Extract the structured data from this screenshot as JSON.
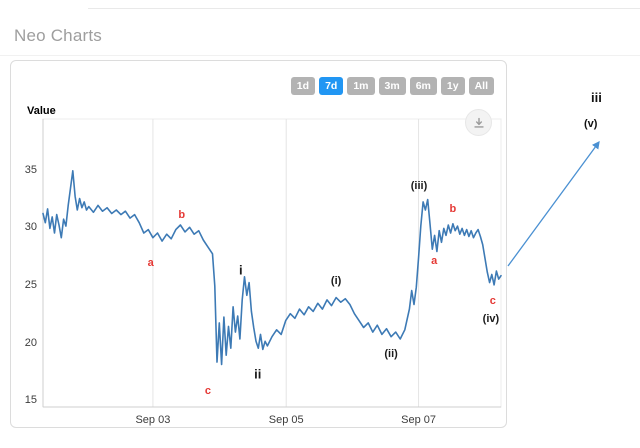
{
  "page": {
    "title": "Neo Charts"
  },
  "colors": {
    "accent": "#2196f3",
    "btn-gray": "#b3b3b3",
    "line": "#3d7ab5",
    "red": "#e53935",
    "arrow-blue": "#4a90d2",
    "title-gray": "#9e9e9e"
  },
  "toolbar": {
    "ranges": [
      {
        "label": "1d",
        "active": false
      },
      {
        "label": "7d",
        "active": true
      },
      {
        "label": "1m",
        "active": false
      },
      {
        "label": "3m",
        "active": false
      },
      {
        "label": "6m",
        "active": false
      },
      {
        "label": "1y",
        "active": false
      },
      {
        "label": "All",
        "active": false
      }
    ],
    "download_icon": "download-icon"
  },
  "chart_data": {
    "type": "line",
    "title": "Neo Charts",
    "ylabel": "Value",
    "xlabel": "",
    "y_ticks": [
      15,
      20,
      25,
      30,
      35
    ],
    "ylim": [
      14.5,
      39.5
    ],
    "grid": "vertical-gridlines-at-date-ticks",
    "legend": "none",
    "x_axis": {
      "labels": [
        "Sep 03",
        "Sep 05",
        "Sep 07"
      ],
      "positions_pct": [
        24,
        53.1,
        82
      ],
      "window": "7d"
    },
    "series": [
      {
        "name": "Value",
        "color": "#3d7ab5",
        "points": [
          [
            0,
            31.3
          ],
          [
            0.5,
            30.5
          ],
          [
            1,
            31.7
          ],
          [
            1.5,
            30
          ],
          [
            2,
            31
          ],
          [
            2.5,
            29.6
          ],
          [
            3,
            31.2
          ],
          [
            3.5,
            30.3
          ],
          [
            4,
            29.2
          ],
          [
            4.5,
            30.8
          ],
          [
            5,
            30.2
          ],
          [
            5.5,
            32
          ],
          [
            6,
            33.5
          ],
          [
            6.5,
            35
          ],
          [
            7,
            32.8
          ],
          [
            7.5,
            31.6
          ],
          [
            8,
            32.6
          ],
          [
            8.5,
            31.8
          ],
          [
            9,
            32.3
          ],
          [
            9.5,
            31.6
          ],
          [
            10,
            31.9
          ],
          [
            11,
            31.4
          ],
          [
            12,
            32
          ],
          [
            13,
            31.5
          ],
          [
            14,
            31.8
          ],
          [
            15,
            31.3
          ],
          [
            16,
            31.6
          ],
          [
            17,
            31.2
          ],
          [
            18,
            31.5
          ],
          [
            19,
            30.9
          ],
          [
            20,
            31.2
          ],
          [
            21,
            30.5
          ],
          [
            22,
            29.6
          ],
          [
            23,
            29.9
          ],
          [
            24,
            29.2
          ],
          [
            25,
            29.6
          ],
          [
            26,
            28.9
          ],
          [
            27,
            29.5
          ],
          [
            28,
            29.1
          ],
          [
            29,
            29.9
          ],
          [
            30,
            30.3
          ],
          [
            31,
            29.7
          ],
          [
            32,
            30.1
          ],
          [
            33,
            29.5
          ],
          [
            34,
            29.8
          ],
          [
            35,
            29
          ],
          [
            36,
            28.4
          ],
          [
            37,
            27.8
          ],
          [
            37.5,
            25
          ],
          [
            38,
            18.4
          ],
          [
            38.5,
            21.8
          ],
          [
            39,
            18.2
          ],
          [
            39.5,
            22.3
          ],
          [
            40,
            19
          ],
          [
            40.5,
            21.5
          ],
          [
            41,
            19.6
          ],
          [
            41.5,
            23.2
          ],
          [
            42,
            21
          ],
          [
            42.5,
            22.4
          ],
          [
            43,
            20.4
          ],
          [
            43.5,
            23.8
          ],
          [
            44,
            25.8
          ],
          [
            44.5,
            24.2
          ],
          [
            45,
            25.3
          ],
          [
            45.5,
            22.8
          ],
          [
            46,
            21.4
          ],
          [
            46.5,
            20.2
          ],
          [
            47,
            19.6
          ],
          [
            47.5,
            20.8
          ],
          [
            48,
            19.5
          ],
          [
            48.5,
            20.2
          ],
          [
            49,
            19.8
          ],
          [
            50,
            20.6
          ],
          [
            51,
            21.2
          ],
          [
            52,
            20.8
          ],
          [
            53,
            22
          ],
          [
            54,
            22.6
          ],
          [
            55,
            22.2
          ],
          [
            56,
            23
          ],
          [
            57,
            22.5
          ],
          [
            58,
            23.2
          ],
          [
            59,
            22.8
          ],
          [
            60,
            23.5
          ],
          [
            61,
            23
          ],
          [
            62,
            23.8
          ],
          [
            63,
            23.3
          ],
          [
            64,
            24
          ],
          [
            65,
            23.6
          ],
          [
            66,
            23.9
          ],
          [
            67,
            23.4
          ],
          [
            68,
            22.6
          ],
          [
            69,
            22
          ],
          [
            70,
            21.4
          ],
          [
            71,
            21.8
          ],
          [
            72,
            21
          ],
          [
            73,
            21.6
          ],
          [
            74,
            20.8
          ],
          [
            75,
            21.3
          ],
          [
            76,
            20.6
          ],
          [
            77,
            21
          ],
          [
            78,
            20.4
          ],
          [
            79,
            21.2
          ],
          [
            80,
            23
          ],
          [
            80.5,
            24.6
          ],
          [
            81,
            23.4
          ],
          [
            81.5,
            24.9
          ],
          [
            82,
            27.5
          ],
          [
            82.5,
            30.2
          ],
          [
            83,
            32.3
          ],
          [
            83.5,
            31.6
          ],
          [
            84,
            32.5
          ],
          [
            84.5,
            30.4
          ],
          [
            85,
            28.2
          ],
          [
            85.5,
            29.4
          ],
          [
            86,
            28
          ],
          [
            86.5,
            29.8
          ],
          [
            87,
            28.8
          ],
          [
            87.5,
            30
          ],
          [
            88,
            29.4
          ],
          [
            88.5,
            30.3
          ],
          [
            89,
            29.6
          ],
          [
            89.5,
            30.4
          ],
          [
            90,
            29.8
          ],
          [
            90.5,
            30.2
          ],
          [
            91,
            29.5
          ],
          [
            91.5,
            30
          ],
          [
            92,
            29.4
          ],
          [
            92.5,
            29.9
          ],
          [
            93,
            29.3
          ],
          [
            93.5,
            29.8
          ],
          [
            94,
            29.2
          ],
          [
            94.5,
            29.6
          ],
          [
            95,
            29.9
          ],
          [
            95.5,
            29.3
          ],
          [
            96,
            28.6
          ],
          [
            96.5,
            27.4
          ],
          [
            97,
            26.2
          ],
          [
            97.5,
            25.3
          ],
          [
            98,
            26
          ],
          [
            98.5,
            25.1
          ],
          [
            99,
            26.3
          ],
          [
            99.5,
            25.6
          ],
          [
            100,
            25.9
          ]
        ]
      }
    ],
    "annotations": [
      {
        "text": "a",
        "x_pct": 23.5,
        "value": 27.0,
        "color": "#e53935",
        "size": 11
      },
      {
        "text": "b",
        "x_pct": 30.3,
        "value": 31.2,
        "color": "#e53935",
        "size": 11
      },
      {
        "text": "c",
        "x_pct": 36.0,
        "value": 15.9,
        "color": "#e53935",
        "size": 11
      },
      {
        "text": "i",
        "x_pct": 43.2,
        "value": 26.4,
        "color": "#1b1b1b",
        "size": 13
      },
      {
        "text": "ii",
        "x_pct": 46.9,
        "value": 17.4,
        "color": "#1b1b1b",
        "size": 13
      },
      {
        "text": "(i)",
        "x_pct": 64.0,
        "value": 25.4,
        "color": "#1b1b1b",
        "size": 11
      },
      {
        "text": "(ii)",
        "x_pct": 76.0,
        "value": 19.1,
        "color": "#1b1b1b",
        "size": 11
      },
      {
        "text": "(iii)",
        "x_pct": 82.1,
        "value": 33.7,
        "color": "#1b1b1b",
        "size": 11
      },
      {
        "text": "a",
        "x_pct": 85.4,
        "value": 27.2,
        "color": "#e53935",
        "size": 11
      },
      {
        "text": "b",
        "x_pct": 89.5,
        "value": 31.7,
        "color": "#e53935",
        "size": 11
      },
      {
        "text": "c",
        "x_pct": 98.2,
        "value": 23.7,
        "color": "#e53935",
        "size": 11
      },
      {
        "text": "(iv)",
        "x_pct": 97.8,
        "value": 22.1,
        "color": "#1b1b1b",
        "size": 11
      }
    ],
    "outside_annotations": [
      {
        "text": "iii"
      },
      {
        "text": "(v)"
      }
    ]
  }
}
